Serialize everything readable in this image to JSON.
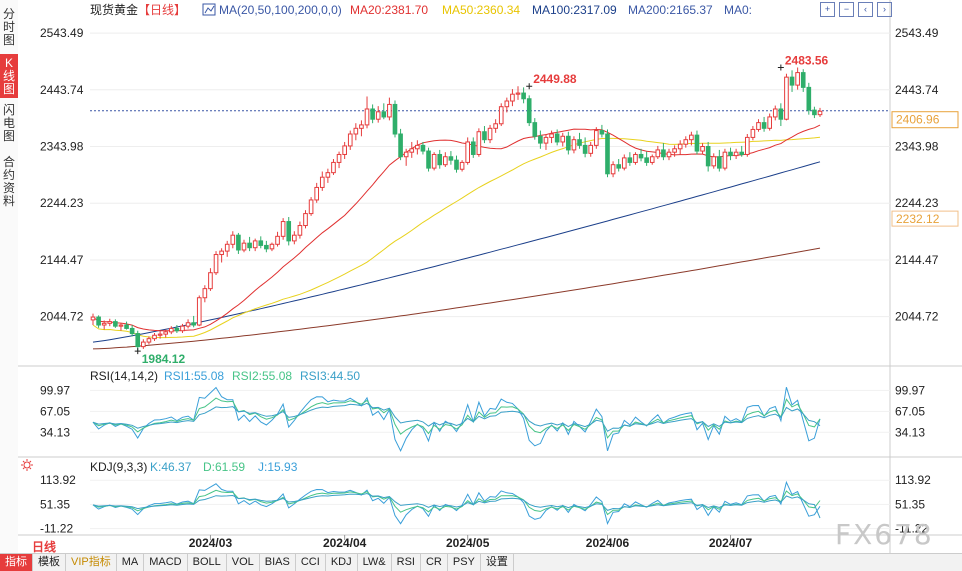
{
  "sidebar": {
    "tabs": [
      {
        "label": "分时图",
        "active": false
      },
      {
        "label": "K线图",
        "active": true
      },
      {
        "label": "闪电图",
        "active": false
      },
      {
        "label": "合约资料",
        "active": false
      }
    ]
  },
  "header": {
    "symbol": "现货黄金",
    "period": "【日线】",
    "ma_label": "MA(20,50,100,200,0,0)",
    "ma20": "MA20:2381.70",
    "ma50": "MA50:2360.34",
    "ma100": "MA100:2317.09",
    "ma200": "MA200:2165.37",
    "ma0": "MA0:"
  },
  "toolbar": {
    "icons": [
      "plus-icon",
      "minus-icon",
      "left-icon",
      "right-icon"
    ]
  },
  "colors": {
    "up": "#e63c3c",
    "down": "#2fae6a",
    "ma20": "#e03030",
    "ma50": "#e8d21e",
    "ma100": "#1b3f8a",
    "ma200": "#8b3a2a",
    "accent": "#3a57a5",
    "header_blue": "#3a57a5"
  },
  "chart_data": [
    {
      "type": "candlestick",
      "title": "现货黄金【日线】",
      "y_axis_labels": [
        "2543.49",
        "2443.74",
        "2343.98",
        "2244.23",
        "2144.47",
        "2044.72"
      ],
      "y_ticks": [
        2543.49,
        2443.74,
        2343.98,
        2244.23,
        2144.47,
        2044.72
      ],
      "ylim": [
        1972,
        2563
      ],
      "x_labels": [
        "2024/03",
        "2024/04",
        "2024/05",
        "2024/06",
        "2024/07"
      ],
      "x_label_index": [
        21,
        45,
        67,
        92,
        114
      ],
      "annotations": {
        "high": "2483.56",
        "high_index": 123,
        "mid_high": "2449.88",
        "mid_high_index": 78,
        "low": "1984.12",
        "low_index": 8
      },
      "current_price": "2406.96",
      "current_value": 2406.96,
      "side_price": "2232.12",
      "side_value": 2232.12,
      "candles": [
        [
          2039,
          2050,
          2030,
          2044
        ],
        [
          2044,
          2047,
          2025,
          2030
        ],
        [
          2030,
          2038,
          2022,
          2033
        ],
        [
          2033,
          2041,
          2028,
          2036
        ],
        [
          2036,
          2040,
          2025,
          2028
        ],
        [
          2028,
          2033,
          2020,
          2030
        ],
        [
          2030,
          2036,
          2022,
          2024
        ],
        [
          2024,
          2030,
          2010,
          2015
        ],
        [
          2015,
          2020,
          1984,
          1992
        ],
        [
          1992,
          2005,
          1988,
          2000
        ],
        [
          2000,
          2010,
          1996,
          2006
        ],
        [
          2006,
          2016,
          2002,
          2012
        ],
        [
          2012,
          2020,
          2006,
          2014
        ],
        [
          2014,
          2022,
          2008,
          2018
        ],
        [
          2018,
          2028,
          2014,
          2024
        ],
        [
          2024,
          2030,
          2016,
          2020
        ],
        [
          2020,
          2032,
          2016,
          2028
        ],
        [
          2028,
          2040,
          2024,
          2034
        ],
        [
          2034,
          2046,
          2026,
          2030
        ],
        [
          2030,
          2082,
          2028,
          2078
        ],
        [
          2078,
          2100,
          2070,
          2094
        ],
        [
          2094,
          2130,
          2090,
          2122
        ],
        [
          2122,
          2160,
          2118,
          2154
        ],
        [
          2154,
          2165,
          2140,
          2160
        ],
        [
          2160,
          2178,
          2150,
          2172
        ],
        [
          2172,
          2195,
          2165,
          2188
        ],
        [
          2188,
          2192,
          2155,
          2162
        ],
        [
          2162,
          2180,
          2158,
          2174
        ],
        [
          2174,
          2185,
          2160,
          2166
        ],
        [
          2166,
          2182,
          2160,
          2178
        ],
        [
          2178,
          2186,
          2165,
          2170
        ],
        [
          2170,
          2178,
          2158,
          2164
        ],
        [
          2164,
          2175,
          2160,
          2172
        ],
        [
          2172,
          2194,
          2168,
          2186
        ],
        [
          2186,
          2218,
          2180,
          2212
        ],
        [
          2212,
          2220,
          2170,
          2178
        ],
        [
          2178,
          2195,
          2172,
          2188
        ],
        [
          2188,
          2212,
          2182,
          2205
        ],
        [
          2205,
          2232,
          2200,
          2226
        ],
        [
          2226,
          2255,
          2222,
          2250
        ],
        [
          2250,
          2280,
          2245,
          2272
        ],
        [
          2272,
          2300,
          2266,
          2290
        ],
        [
          2290,
          2305,
          2280,
          2298
        ],
        [
          2298,
          2322,
          2294,
          2316
        ],
        [
          2316,
          2335,
          2306,
          2330
        ],
        [
          2330,
          2352,
          2322,
          2345
        ],
        [
          2345,
          2372,
          2338,
          2366
        ],
        [
          2366,
          2385,
          2355,
          2376
        ],
        [
          2376,
          2390,
          2362,
          2382
        ],
        [
          2382,
          2432,
          2376,
          2410
        ],
        [
          2410,
          2418,
          2385,
          2392
        ],
        [
          2392,
          2415,
          2386,
          2405
        ],
        [
          2405,
          2420,
          2392,
          2396
        ],
        [
          2396,
          2430,
          2390,
          2418
        ],
        [
          2418,
          2425,
          2360,
          2366
        ],
        [
          2366,
          2375,
          2320,
          2326
        ],
        [
          2326,
          2340,
          2310,
          2334
        ],
        [
          2334,
          2352,
          2324,
          2340
        ],
        [
          2340,
          2355,
          2330,
          2346
        ],
        [
          2346,
          2352,
          2330,
          2336
        ],
        [
          2336,
          2342,
          2300,
          2306
        ],
        [
          2306,
          2334,
          2302,
          2330
        ],
        [
          2330,
          2338,
          2305,
          2312
        ],
        [
          2312,
          2334,
          2308,
          2326
        ],
        [
          2326,
          2336,
          2312,
          2320
        ],
        [
          2320,
          2328,
          2298,
          2304
        ],
        [
          2304,
          2320,
          2300,
          2316
        ],
        [
          2316,
          2360,
          2312,
          2352
        ],
        [
          2352,
          2360,
          2324,
          2330
        ],
        [
          2330,
          2376,
          2326,
          2370
        ],
        [
          2370,
          2380,
          2350,
          2356
        ],
        [
          2356,
          2382,
          2350,
          2376
        ],
        [
          2376,
          2392,
          2368,
          2384
        ],
        [
          2384,
          2420,
          2380,
          2414
        ],
        [
          2414,
          2430,
          2404,
          2424
        ],
        [
          2424,
          2445,
          2415,
          2436
        ],
        [
          2436,
          2450,
          2426,
          2438
        ],
        [
          2438,
          2448,
          2420,
          2428
        ],
        [
          2428,
          2434,
          2380,
          2386
        ],
        [
          2386,
          2394,
          2356,
          2362
        ],
        [
          2362,
          2372,
          2340,
          2350
        ],
        [
          2350,
          2366,
          2338,
          2360
        ],
        [
          2360,
          2372,
          2350,
          2366
        ],
        [
          2366,
          2374,
          2346,
          2352
        ],
        [
          2352,
          2368,
          2344,
          2362
        ],
        [
          2362,
          2370,
          2330,
          2338
        ],
        [
          2338,
          2362,
          2332,
          2356
        ],
        [
          2356,
          2368,
          2340,
          2346
        ],
        [
          2346,
          2360,
          2325,
          2332
        ],
        [
          2332,
          2352,
          2326,
          2346
        ],
        [
          2346,
          2378,
          2340,
          2372
        ],
        [
          2372,
          2382,
          2360,
          2366
        ],
        [
          2366,
          2374,
          2290,
          2296
        ],
        [
          2296,
          2318,
          2290,
          2312
        ],
        [
          2312,
          2322,
          2300,
          2306
        ],
        [
          2306,
          2330,
          2302,
          2324
        ],
        [
          2324,
          2334,
          2310,
          2316
        ],
        [
          2316,
          2334,
          2312,
          2330
        ],
        [
          2330,
          2340,
          2318,
          2324
        ],
        [
          2324,
          2335,
          2310,
          2316
        ],
        [
          2316,
          2330,
          2312,
          2326
        ],
        [
          2326,
          2345,
          2322,
          2338
        ],
        [
          2338,
          2350,
          2320,
          2326
        ],
        [
          2326,
          2340,
          2320,
          2334
        ],
        [
          2334,
          2346,
          2326,
          2340
        ],
        [
          2340,
          2355,
          2330,
          2348
        ],
        [
          2348,
          2362,
          2342,
          2356
        ],
        [
          2356,
          2370,
          2346,
          2364
        ],
        [
          2364,
          2372,
          2330,
          2336
        ],
        [
          2336,
          2350,
          2330,
          2344
        ],
        [
          2344,
          2352,
          2300,
          2310
        ],
        [
          2310,
          2332,
          2305,
          2326
        ],
        [
          2326,
          2338,
          2300,
          2306
        ],
        [
          2306,
          2340,
          2302,
          2334
        ],
        [
          2334,
          2342,
          2320,
          2328
        ],
        [
          2328,
          2340,
          2322,
          2334
        ],
        [
          2334,
          2345,
          2326,
          2330
        ],
        [
          2330,
          2366,
          2326,
          2360
        ],
        [
          2360,
          2380,
          2355,
          2374
        ],
        [
          2374,
          2392,
          2370,
          2386
        ],
        [
          2386,
          2396,
          2370,
          2376
        ],
        [
          2376,
          2402,
          2372,
          2396
        ],
        [
          2396,
          2416,
          2390,
          2410
        ],
        [
          2410,
          2420,
          2380,
          2392
        ],
        [
          2392,
          2472,
          2390,
          2466
        ],
        [
          2466,
          2478,
          2440,
          2452
        ],
        [
          2452,
          2483,
          2444,
          2474
        ],
        [
          2474,
          2480,
          2440,
          2448
        ],
        [
          2448,
          2456,
          2400,
          2408
        ],
        [
          2408,
          2414,
          2394,
          2400
        ],
        [
          2400,
          2412,
          2396,
          2406
        ]
      ],
      "ma_endpoints": {
        "ma20_last": 2381.7,
        "ma50_last": 2360.34,
        "ma100_last": 2317.09,
        "ma200_last": 2165.37
      }
    },
    {
      "type": "line",
      "title": "RSI(14,14,2)",
      "series": [
        {
          "name": "RSI1:55.08",
          "last": 55.08
        },
        {
          "name": "RSI2:55.08",
          "last": 55.08
        },
        {
          "name": "RSI3:44.50",
          "last": 44.5
        }
      ],
      "y_axis_labels": [
        "99.97",
        "67.05",
        "34.13"
      ],
      "y_ticks": [
        99.97,
        67.05,
        34.13
      ],
      "ylim": [
        0,
        110
      ]
    },
    {
      "type": "line",
      "title": "KDJ(9,3,3)",
      "series": [
        {
          "name": "K:46.37",
          "last": 46.37
        },
        {
          "name": "D:61.59",
          "last": 61.59
        },
        {
          "name": "J:15.93",
          "last": 15.93
        }
      ],
      "y_axis_labels": [
        "113.92",
        "51.35",
        "-11.22"
      ],
      "y_ticks": [
        113.92,
        51.35,
        -11.22
      ],
      "ylim": [
        -20,
        130
      ]
    }
  ],
  "period_label": "日线",
  "watermark": "FX678",
  "bottom_bar": {
    "items": [
      "指标",
      "模板",
      "VIP指标",
      "MA",
      "MACD",
      "BOLL",
      "VOL",
      "BIAS",
      "CCI",
      "KDJ",
      "LW&",
      "RSI",
      "CR",
      "PSY",
      "设置"
    ]
  }
}
